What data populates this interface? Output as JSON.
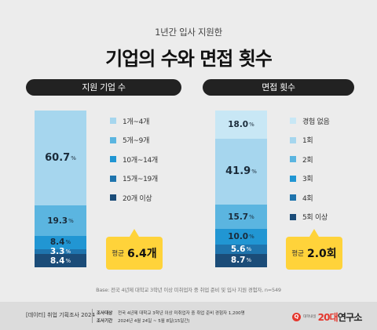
{
  "header": {
    "subtitle": "1년간 입사 지원한",
    "title": "기업의 수와 면접 횟수"
  },
  "chart_data": [
    {
      "type": "bar",
      "stacked": true,
      "title": "지원 기업 수",
      "unit": "%",
      "categories": [
        "1개~4개",
        "5개~9개",
        "10개~14개",
        "15개~19개",
        "20개 이상"
      ],
      "values": [
        60.7,
        19.3,
        8.4,
        3.3,
        8.4
      ],
      "value_labels": [
        "60.7",
        "19.3",
        "8.4",
        "3.3",
        "8.4"
      ],
      "colors": [
        "#a6d6ee",
        "#5bb5e0",
        "#2196d3",
        "#1f74ad",
        "#1b4c78"
      ],
      "average_label": "평균",
      "average_value": "6.4개"
    },
    {
      "type": "bar",
      "stacked": true,
      "title": "면접 횟수",
      "unit": "%",
      "categories": [
        "경험 없음",
        "1회",
        "2회",
        "3회",
        "4회",
        "5회 이상"
      ],
      "values": [
        18.0,
        41.9,
        15.7,
        10.0,
        5.6,
        8.7
      ],
      "value_labels": [
        "18.0",
        "41.9",
        "15.7",
        "10.0",
        "5.6",
        "8.7"
      ],
      "colors": [
        "#c8e7f5",
        "#a6d6ee",
        "#5bb5e0",
        "#2196d3",
        "#1f74ad",
        "#1b4c78"
      ],
      "average_label": "평균",
      "average_value": "2.0회"
    }
  ],
  "base_note": "Base: 전국 4년제 대학교 3학년 이상 미취업자 중 취업 준비 및 입사 지원 경험자, n=549",
  "footer": {
    "series": "[데이터] 취업 기획조사 2024",
    "survey": [
      {
        "key": "조사대상",
        "value": "전국 4년제 대학교 3학년 이상 미취업자 중 취업 준비 경험자 1,200명"
      },
      {
        "key": "조사기간",
        "value": "2024년 4월 24일 ~ 5월 8일(15일간)"
      }
    ],
    "brand_icon": "Q",
    "brand_mini": "대학내일",
    "brand_red": "20대",
    "brand_dark": "연구소"
  }
}
